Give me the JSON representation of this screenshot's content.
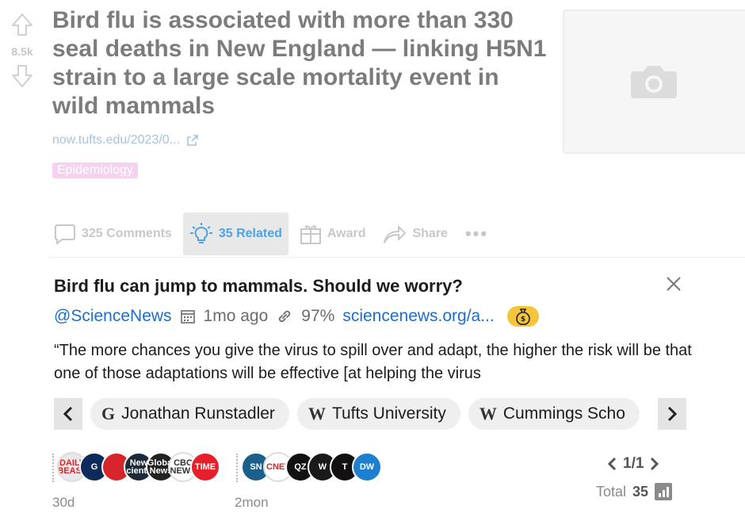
{
  "post": {
    "vote_count": "8.5k",
    "title": "Bird flu is associated with more than 330 seal deaths in New England — linking H5N1 strain to a large scale mortality event in wild mammals",
    "link_text": "now.tufts.edu/2023/0...",
    "flair": "Epidemiology",
    "flair_color": "#f5d2ef"
  },
  "actions": {
    "comments": "325 Comments",
    "related": "35 Related",
    "award": "Award",
    "share": "Share",
    "more": "•••"
  },
  "related_card": {
    "title": "Bird flu can jump to mammals. Should we worry?",
    "handle": "@ScienceNews",
    "time": "1mo ago",
    "percent": "97%",
    "domain": "sciencenews.org/a...",
    "quote": "“The more chances you give the virus to spill over and adapt, the higher the risk will be that one of those adaptations will be effective [at helping the virus",
    "chips": [
      {
        "glyph": "G",
        "label": "Jonathan Runstadler"
      },
      {
        "glyph": "W",
        "label": "Tufts University"
      },
      {
        "glyph": "W",
        "label": "Cummings Scho"
      }
    ]
  },
  "sources": {
    "group1": {
      "age": "30d",
      "logos": [
        {
          "text": "DAILY BEAST",
          "color": "#e9e9e9",
          "fg": "#d7262b"
        },
        {
          "text": "G",
          "color": "#0c2b5a",
          "fg": "#ffffff"
        },
        {
          "text": "",
          "color": "#d7262b",
          "fg": "#ffffff"
        },
        {
          "text": "New Scientist",
          "color": "#1c2a3a",
          "fg": "#ffffff"
        },
        {
          "text": "Global News",
          "color": "#222222",
          "fg": "#ffffff"
        },
        {
          "text": "CBC NEWS",
          "color": "#ffffff",
          "fg": "#333333"
        },
        {
          "text": "TIME",
          "color": "#e6202a",
          "fg": "#ffffff"
        }
      ]
    },
    "group2": {
      "age": "2mon",
      "logos": [
        {
          "text": "SN",
          "color": "#1b5f8a",
          "fg": "#ffffff"
        },
        {
          "text": "CNET",
          "color": "#ffffff",
          "fg": "#d7262b"
        },
        {
          "text": "QZ",
          "color": "#111111",
          "fg": "#ffffff"
        },
        {
          "text": "W",
          "color": "#1a1a1a",
          "fg": "#ffffff"
        },
        {
          "text": "T",
          "color": "#111111",
          "fg": "#ffffff"
        },
        {
          "text": "DW",
          "color": "#1e7fd0",
          "fg": "#ffffff"
        }
      ]
    }
  },
  "pager": {
    "label": "1/1",
    "total_label": "Total",
    "total_value": "35"
  }
}
